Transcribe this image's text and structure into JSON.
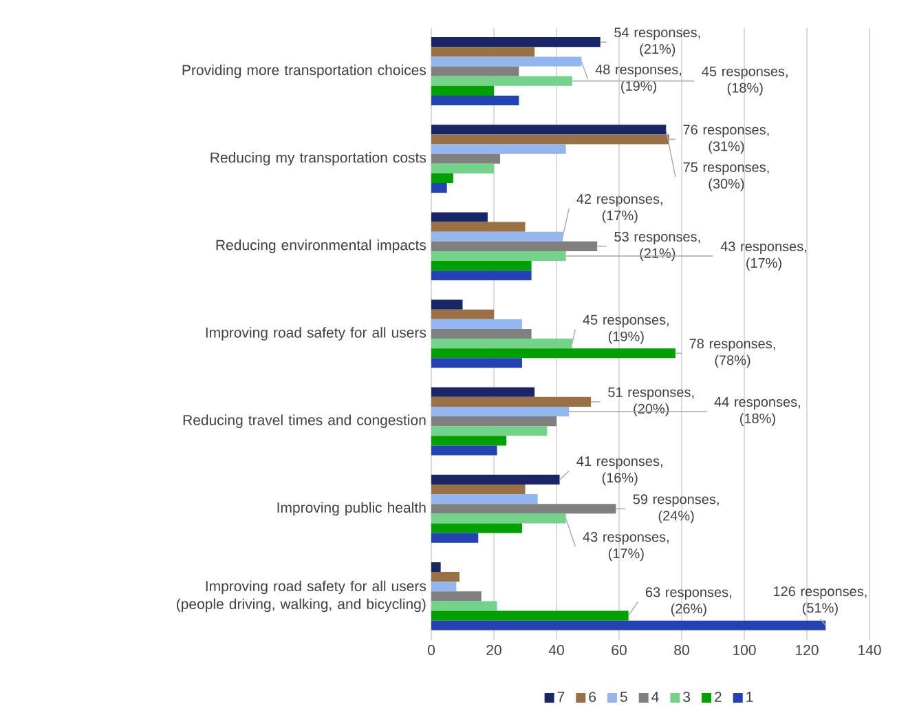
{
  "chart_data": {
    "type": "bar",
    "orientation": "horizontal",
    "categories": [
      "Providing more transportation choices",
      "Reducing my transportation costs",
      "Reducing environmental impacts",
      "Improving road safety for all users",
      "Reducing travel times and congestion",
      "Improving public health",
      "Improving road safety for all users (people driving, walking, and bicycling)"
    ],
    "series": [
      {
        "name": "7",
        "color": "#1a2766",
        "values": [
          54,
          75,
          18,
          10,
          33,
          41,
          3
        ],
        "value_labels": [
          "54 responses, (21%)",
          "75 responses, (30%)",
          null,
          null,
          null,
          "41 responses, (16%)",
          null
        ]
      },
      {
        "name": "6",
        "color": "#9a7045",
        "values": [
          33,
          76,
          30,
          20,
          51,
          30,
          9
        ],
        "value_labels": [
          null,
          "76 responses, (31%)",
          null,
          null,
          "51 responses, (20%)",
          null,
          null
        ]
      },
      {
        "name": "5",
        "color": "#94b6ef",
        "values": [
          48,
          43,
          42,
          29,
          44,
          34,
          8
        ],
        "value_labels": [
          "48 responses, (19%)",
          null,
          "42 responses, (17%)",
          null,
          "44 responses, (18%)",
          null,
          null
        ]
      },
      {
        "name": "4",
        "color": "#808080",
        "values": [
          28,
          22,
          53,
          32,
          40,
          59,
          16
        ],
        "value_labels": [
          null,
          null,
          "53 responses, (21%)",
          null,
          null,
          "59 responses, (24%)",
          null
        ]
      },
      {
        "name": "3",
        "color": "#74d38a",
        "values": [
          45,
          20,
          43,
          45,
          37,
          43,
          21
        ],
        "value_labels": [
          "45 responses, (18%)",
          null,
          "43 responses, (17%)",
          "45 responses, (19%)",
          null,
          "43 responses, (17%)",
          null
        ]
      },
      {
        "name": "2",
        "color": "#00a000",
        "values": [
          20,
          7,
          32,
          78,
          24,
          29,
          63
        ],
        "value_labels": [
          null,
          null,
          null,
          "78 responses, (78%)",
          null,
          null,
          "63 responses, (26%)"
        ]
      },
      {
        "name": "1",
        "color": "#2443b3",
        "values": [
          28,
          5,
          32,
          29,
          21,
          15,
          126
        ],
        "value_labels": [
          null,
          null,
          null,
          null,
          null,
          null,
          "126 responses, (51%)"
        ]
      }
    ],
    "xlim": [
      0,
      140
    ],
    "xticks": [
      0,
      20,
      40,
      60,
      80,
      100,
      120,
      140
    ],
    "grid": "x",
    "legend": "bottom"
  }
}
